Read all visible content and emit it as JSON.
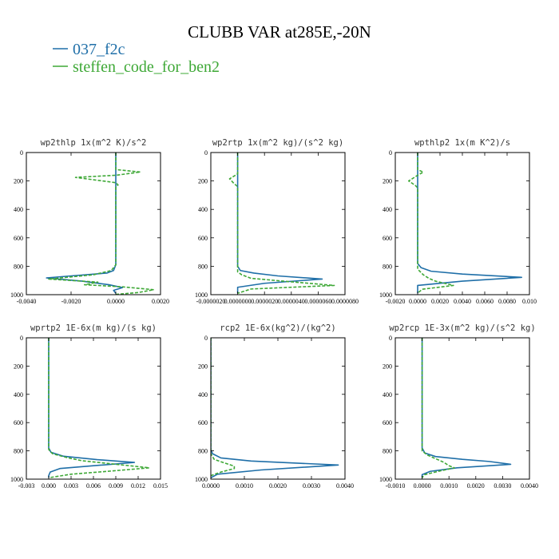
{
  "figure_title": "CLUBB VAR at285E,-20N",
  "legend": [
    {
      "label": "037_f2c",
      "color": "#1f6fa8",
      "dash": "solid"
    },
    {
      "label": "steffen_code_for_ben2",
      "color": "#3ea836",
      "dash": "dashed"
    }
  ],
  "chart_data": [
    {
      "type": "line",
      "title": "wp2thlp   1x(m^2 K)/s^2",
      "xlim": [
        -0.004,
        0.002
      ],
      "ylim": [
        0,
        1000
      ],
      "y_inverted": true,
      "xticks": [
        -0.004,
        -0.002,
        0,
        0.002
      ],
      "xtick_labels": [
        "-0.0040",
        "-0.0020",
        "0.0000",
        "0.0020"
      ],
      "yticks": [
        0,
        200,
        400,
        600,
        800,
        1000
      ],
      "ytick_labels": [
        "0",
        "200",
        "400",
        "600",
        "800",
        "1000"
      ],
      "series": [
        {
          "name": "037_f2c",
          "points": [
            [
              0,
              0
            ],
            [
              0,
              200
            ],
            [
              0,
              400
            ],
            [
              0,
              600
            ],
            [
              0,
              790
            ],
            [
              -0.0001,
              830
            ],
            [
              -0.0004,
              848
            ],
            [
              -0.002,
              868
            ],
            [
              -0.0031,
              882
            ],
            [
              -0.0015,
              905
            ],
            [
              -0.0003,
              930
            ],
            [
              0.0003,
              950
            ],
            [
              -0.0001,
              970
            ],
            [
              0,
              990
            ]
          ]
        },
        {
          "name": "steffen_code_for_ben2",
          "points": [
            [
              0,
              0
            ],
            [
              0,
              120
            ],
            [
              0.0011,
              137
            ],
            [
              0,
              160
            ],
            [
              -0.0018,
              175
            ],
            [
              0,
              212
            ],
            [
              0.0001,
              228
            ],
            [
              0,
              245
            ],
            [
              0,
              600
            ],
            [
              0,
              790
            ],
            [
              -0.0002,
              830
            ],
            [
              -0.001,
              860
            ],
            [
              -0.003,
              890
            ],
            [
              -0.0008,
              912
            ],
            [
              -0.0014,
              930
            ],
            [
              0.0003,
              945
            ],
            [
              0.0017,
              965
            ],
            [
              0.001,
              985
            ],
            [
              0,
              998
            ]
          ]
        }
      ]
    },
    {
      "type": "line",
      "title": "wp2rtp   1x(m^2 kg)/(s^2 kg)",
      "xlim": [
        -2e-06,
        8e-06
      ],
      "ylim": [
        0,
        1000
      ],
      "y_inverted": true,
      "xticks": [
        -2e-06,
        0,
        2e-06,
        4e-06,
        6e-06,
        8e-06
      ],
      "xtick_labels": [
        "-0.0000020",
        "0.0000000",
        "0.0000020",
        "0.0000040",
        "0.0000060",
        "0.0000080"
      ],
      "yticks": [
        0,
        200,
        400,
        600,
        800,
        1000
      ],
      "ytick_labels": [
        "0",
        "200",
        "400",
        "600",
        "800",
        "1000"
      ],
      "series": [
        {
          "name": "037_f2c",
          "points": [
            [
              0,
              0
            ],
            [
              0,
              200
            ],
            [
              0,
              500
            ],
            [
              0,
              800
            ],
            [
              2e-07,
              830
            ],
            [
              1.2e-06,
              848
            ],
            [
              3e-06,
              868
            ],
            [
              6.3e-06,
              890
            ],
            [
              2e-06,
              920
            ],
            [
              0,
              948
            ],
            [
              0,
              972
            ],
            [
              0,
              990
            ]
          ]
        },
        {
          "name": "steffen_code_for_ben2",
          "points": [
            [
              0,
              0
            ],
            [
              0,
              150
            ],
            [
              -6e-07,
              185
            ],
            [
              -3e-07,
              215
            ],
            [
              0,
              240
            ],
            [
              0,
              600
            ],
            [
              0,
              840
            ],
            [
              3e-07,
              860
            ],
            [
              1e-06,
              885
            ],
            [
              3.8e-06,
              908
            ],
            [
              7.2e-06,
              935
            ],
            [
              1e-06,
              960
            ],
            [
              0,
              990
            ]
          ]
        }
      ]
    },
    {
      "type": "line",
      "title": "wpthlp2   1x(m K^2)/s",
      "xlim": [
        -0.002,
        0.01
      ],
      "ylim": [
        0,
        1000
      ],
      "y_inverted": true,
      "xticks": [
        -0.002,
        0,
        0.002,
        0.004,
        0.006,
        0.008,
        0.01
      ],
      "xtick_labels": [
        "-0.0020",
        "0.0000",
        "0.0020",
        "0.0040",
        "0.0060",
        "0.0080",
        "0.010"
      ],
      "yticks": [
        0,
        200,
        400,
        600,
        800,
        1000
      ],
      "ytick_labels": [
        "0",
        "200",
        "400",
        "600",
        "800",
        "1000"
      ],
      "series": [
        {
          "name": "037_f2c",
          "points": [
            [
              0,
              0
            ],
            [
              0,
              500
            ],
            [
              0,
              780
            ],
            [
              0.0003,
              810
            ],
            [
              0.0012,
              835
            ],
            [
              0.004,
              855
            ],
            [
              0.0093,
              878
            ],
            [
              0.004,
              905
            ],
            [
              0,
              935
            ],
            [
              0,
              965
            ],
            [
              0,
              990
            ]
          ]
        },
        {
          "name": "steffen_code_for_ben2",
          "points": [
            [
              0,
              0
            ],
            [
              0,
              120
            ],
            [
              0.0005,
              138
            ],
            [
              0,
              160
            ],
            [
              -0.0008,
              200
            ],
            [
              -0.0002,
              232
            ],
            [
              0,
              248
            ],
            [
              0,
              600
            ],
            [
              0,
              820
            ],
            [
              0.0005,
              860
            ],
            [
              0.001,
              885
            ],
            [
              0.0016,
              905
            ],
            [
              0.0032,
              935
            ],
            [
              0.0004,
              962
            ],
            [
              0,
              990
            ]
          ]
        }
      ]
    },
    {
      "type": "line",
      "title": "wprtp2   1E-6x(m kg)/(s kg)",
      "xlim": [
        -0.003,
        0.015
      ],
      "ylim": [
        0,
        1000
      ],
      "y_inverted": true,
      "xticks": [
        -0.003,
        0,
        0.003,
        0.006,
        0.009,
        0.012,
        0.015
      ],
      "xtick_labels": [
        "-0.003",
        "0.000",
        "0.003",
        "0.006",
        "0.009",
        "0.012",
        "0.015"
      ],
      "yticks": [
        0,
        200,
        400,
        600,
        800,
        1000
      ],
      "ytick_labels": [
        "0",
        "200",
        "400",
        "600",
        "800",
        "1000"
      ],
      "series": [
        {
          "name": "037_f2c",
          "points": [
            [
              0,
              0
            ],
            [
              0,
              400
            ],
            [
              0,
              780
            ],
            [
              0.0003,
              810
            ],
            [
              0.002,
              838
            ],
            [
              0.0065,
              862
            ],
            [
              0.0115,
              882
            ],
            [
              0.006,
              905
            ],
            [
              0.0015,
              925
            ],
            [
              0.0002,
              950
            ],
            [
              0,
              975
            ],
            [
              0,
              990
            ]
          ]
        },
        {
          "name": "steffen_code_for_ben2",
          "points": [
            [
              0,
              0
            ],
            [
              0,
              400
            ],
            [
              0,
              790
            ],
            [
              0.0005,
              820
            ],
            [
              0.0025,
              848
            ],
            [
              0.0045,
              870
            ],
            [
              0.0085,
              892
            ],
            [
              0.0135,
              920
            ],
            [
              0.009,
              940
            ],
            [
              0.003,
              965
            ],
            [
              0,
              990
            ]
          ]
        }
      ]
    },
    {
      "type": "line",
      "title": "rcp2   1E-6x(kg^2)/(kg^2)",
      "xlim": [
        0,
        0.004
      ],
      "ylim": [
        0,
        1000
      ],
      "y_inverted": true,
      "xticks": [
        0,
        0.001,
        0.002,
        0.003,
        0.004
      ],
      "xtick_labels": [
        "0.0000",
        "0.0010",
        "0.0020",
        "0.0030",
        "0.0040"
      ],
      "yticks": [
        0,
        200,
        400,
        600,
        800,
        1000
      ],
      "ytick_labels": [
        "0",
        "200",
        "400",
        "600",
        "800",
        "1000"
      ],
      "series": [
        {
          "name": "037_f2c",
          "points": [
            [
              0,
              0
            ],
            [
              0,
              400
            ],
            [
              0,
              790
            ],
            [
              5e-05,
              820
            ],
            [
              0.0003,
              850
            ],
            [
              0.0012,
              872
            ],
            [
              0.0038,
              900
            ],
            [
              0.0015,
              935
            ],
            [
              0.0002,
              965
            ],
            [
              0,
              990
            ]
          ]
        },
        {
          "name": "steffen_code_for_ben2",
          "points": [
            [
              0,
              0
            ],
            [
              0,
              400
            ],
            [
              0,
              820
            ],
            [
              0.0001,
              860
            ],
            [
              0.0004,
              885
            ],
            [
              0.0007,
              908
            ],
            [
              0.0007,
              925
            ],
            [
              0.0003,
              950
            ],
            [
              0,
              975
            ],
            [
              0,
              990
            ]
          ]
        }
      ]
    },
    {
      "type": "line",
      "title": "wp2rcp   1E-3x(m^2 kg)/(s^2 kg)",
      "xlim": [
        -0.001,
        0.004
      ],
      "ylim": [
        0,
        1000
      ],
      "y_inverted": true,
      "xticks": [
        -0.001,
        0,
        0.001,
        0.002,
        0.003,
        0.004
      ],
      "xtick_labels": [
        "-0.0010",
        "0.0000",
        "0.0010",
        "0.0020",
        "0.0030",
        "0.0040"
      ],
      "yticks": [
        0,
        200,
        400,
        600,
        800,
        1000
      ],
      "ytick_labels": [
        "0",
        "200",
        "400",
        "600",
        "800",
        "1000"
      ],
      "series": [
        {
          "name": "037_f2c",
          "points": [
            [
              0,
              0
            ],
            [
              0,
              400
            ],
            [
              0,
              780
            ],
            [
              0.0001,
              815
            ],
            [
              0.0005,
              840
            ],
            [
              0.0015,
              860
            ],
            [
              0.0025,
              875
            ],
            [
              0.0033,
              895
            ],
            [
              0.0013,
              920
            ],
            [
              0.0003,
              945
            ],
            [
              0,
              968
            ],
            [
              0,
              990
            ]
          ]
        },
        {
          "name": "steffen_code_for_ben2",
          "points": [
            [
              0,
              0
            ],
            [
              0,
              400
            ],
            [
              0,
              800
            ],
            [
              0.0002,
              830
            ],
            [
              0.0005,
              855
            ],
            [
              0.0008,
              880
            ],
            [
              0.001,
              905
            ],
            [
              0.0012,
              920
            ],
            [
              0.0006,
              945
            ],
            [
              0.0001,
              968
            ],
            [
              0,
              990
            ]
          ]
        }
      ]
    }
  ]
}
